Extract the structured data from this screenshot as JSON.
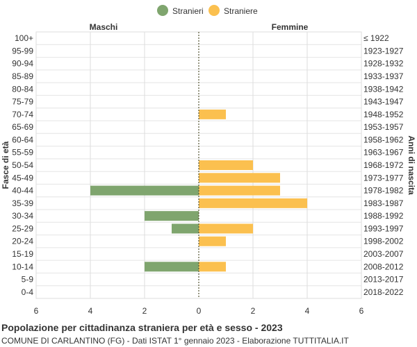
{
  "chart_data": {
    "type": "bar",
    "orientation": "horizontal-pyramid",
    "legend": {
      "position": "top-center",
      "items": [
        {
          "label": "Stranieri",
          "color": "#7fa56e"
        },
        {
          "label": "Straniere",
          "color": "#fbc04f"
        }
      ]
    },
    "left_header": "Maschi",
    "right_header": "Femmine",
    "ylabel_left": "Fasce di età",
    "ylabel_right": "Anni di nascita",
    "xlim": [
      -6,
      6
    ],
    "x_ticks": [
      -6,
      -4,
      -2,
      0,
      2,
      4,
      6
    ],
    "x_tick_labels": [
      "6",
      "4",
      "2",
      "0",
      "2",
      "4",
      "6"
    ],
    "grid": true,
    "age_groups": [
      "100+",
      "95-99",
      "90-94",
      "85-89",
      "80-84",
      "75-79",
      "70-74",
      "65-69",
      "60-64",
      "55-59",
      "50-54",
      "45-49",
      "40-44",
      "35-39",
      "30-34",
      "25-29",
      "20-24",
      "15-19",
      "10-14",
      "5-9",
      "0-4"
    ],
    "birth_years": [
      "≤ 1922",
      "1923-1927",
      "1928-1932",
      "1933-1937",
      "1938-1942",
      "1943-1947",
      "1948-1952",
      "1953-1957",
      "1958-1962",
      "1963-1967",
      "1968-1972",
      "1973-1977",
      "1978-1982",
      "1983-1987",
      "1988-1992",
      "1993-1997",
      "1998-2002",
      "2003-2007",
      "2008-2012",
      "2013-2017",
      "2018-2022"
    ],
    "series": [
      {
        "name": "Stranieri",
        "side": "left",
        "values": [
          0,
          0,
          0,
          0,
          0,
          0,
          0,
          0,
          0,
          0,
          0,
          0,
          4,
          0,
          2,
          1,
          0,
          0,
          2,
          0,
          0
        ]
      },
      {
        "name": "Straniere",
        "side": "right",
        "values": [
          0,
          0,
          0,
          0,
          0,
          0,
          1,
          0,
          0,
          0,
          2,
          3,
          3,
          4,
          0,
          2,
          1,
          0,
          1,
          0,
          0
        ]
      }
    ]
  },
  "footer": {
    "title": "Popolazione per cittadinanza straniera per età e sesso - 2023",
    "subtitle": "COMUNE DI CARLANTINO (FG) - Dati ISTAT 1° gennaio 2023 - Elaborazione TUTTITALIA.IT"
  }
}
